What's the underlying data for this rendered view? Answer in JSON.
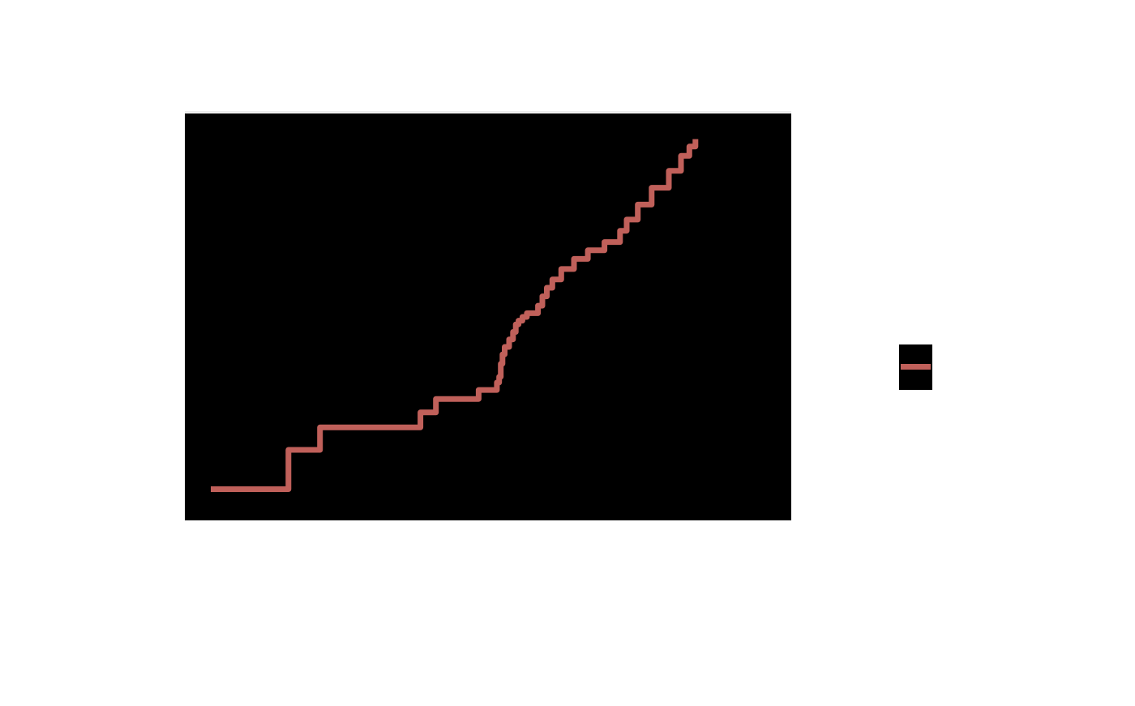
{
  "chart_data": {
    "type": "line",
    "step": true,
    "title": "",
    "xlabel": "",
    "ylabel": "",
    "panel_background": "#000000",
    "page_background": "#ffffff",
    "grid": false,
    "legend": {
      "position": "right",
      "entries": [
        ""
      ]
    },
    "xlim": [
      0,
      1000
    ],
    "ylim": [
      0,
      1000
    ],
    "series": [
      {
        "color": "#c0605a",
        "points": [
          [
            0,
            40
          ],
          [
            140,
            40
          ],
          [
            140,
            145
          ],
          [
            197,
            145
          ],
          [
            197,
            205
          ],
          [
            378,
            205
          ],
          [
            378,
            245
          ],
          [
            406,
            245
          ],
          [
            406,
            281
          ],
          [
            483,
            281
          ],
          [
            483,
            305
          ],
          [
            516,
            305
          ],
          [
            516,
            325
          ],
          [
            520,
            325
          ],
          [
            520,
            340
          ],
          [
            523,
            340
          ],
          [
            523,
            375
          ],
          [
            526,
            375
          ],
          [
            526,
            400
          ],
          [
            530,
            400
          ],
          [
            530,
            420
          ],
          [
            538,
            420
          ],
          [
            538,
            440
          ],
          [
            545,
            440
          ],
          [
            545,
            460
          ],
          [
            550,
            460
          ],
          [
            550,
            480
          ],
          [
            555,
            480
          ],
          [
            555,
            490
          ],
          [
            562,
            490
          ],
          [
            562,
            500
          ],
          [
            570,
            500
          ],
          [
            570,
            510
          ],
          [
            590,
            510
          ],
          [
            590,
            530
          ],
          [
            598,
            530
          ],
          [
            598,
            555
          ],
          [
            606,
            555
          ],
          [
            606,
            578
          ],
          [
            616,
            578
          ],
          [
            616,
            600
          ],
          [
            632,
            600
          ],
          [
            632,
            628
          ],
          [
            655,
            628
          ],
          [
            655,
            655
          ],
          [
            680,
            655
          ],
          [
            680,
            678
          ],
          [
            710,
            678
          ],
          [
            710,
            700
          ],
          [
            738,
            700
          ],
          [
            738,
            730
          ],
          [
            750,
            730
          ],
          [
            750,
            760
          ],
          [
            770,
            760
          ],
          [
            770,
            800
          ],
          [
            795,
            800
          ],
          [
            795,
            845
          ],
          [
            826,
            845
          ],
          [
            826,
            890
          ],
          [
            848,
            890
          ],
          [
            848,
            930
          ],
          [
            863,
            930
          ],
          [
            863,
            955
          ],
          [
            874,
            955
          ],
          [
            874,
            975
          ]
        ]
      }
    ]
  }
}
